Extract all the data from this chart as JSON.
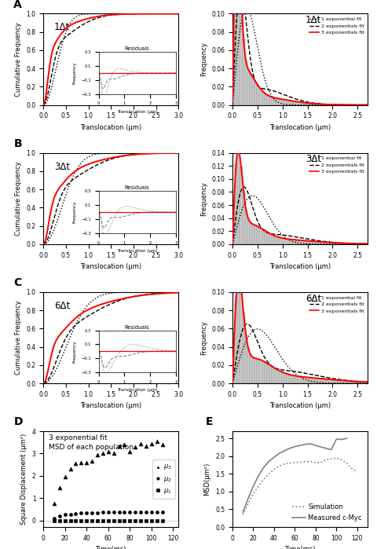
{
  "panels": [
    "A",
    "B",
    "C"
  ],
  "delta_t_labels": [
    "1Δt",
    "3Δt",
    "6Δt"
  ],
  "legend_entries": [
    "1 exponential fit",
    "2 exponentials fit",
    "3 exponentials fit"
  ],
  "bar_color": "#c8c8c8",
  "bar_edge_color": "#999999",
  "panel_D_title1": "3 exponential fit",
  "panel_D_title2": "MSD of each population",
  "panel_D_xlabel": "Time(ms)",
  "panel_D_ylabel": "Square Displacement (μm²)",
  "panel_E_xlabel": "Time(ms)",
  "panel_E_ylabel": "MSD(μm²)",
  "mu3_times": [
    10,
    15,
    20,
    25,
    30,
    35,
    40,
    45,
    50,
    55,
    60,
    65,
    70,
    75,
    80,
    85,
    90,
    95,
    100,
    105,
    110
  ],
  "mu3_values": [
    0.75,
    1.45,
    1.95,
    2.3,
    2.55,
    2.6,
    2.6,
    2.65,
    2.95,
    3.0,
    3.1,
    3.0,
    3.35,
    3.4,
    3.1,
    3.3,
    3.45,
    3.35,
    3.45,
    3.55,
    3.4
  ],
  "mu2_times": [
    10,
    15,
    20,
    25,
    30,
    35,
    40,
    45,
    50,
    55,
    60,
    65,
    70,
    75,
    80,
    85,
    90,
    95,
    100,
    105,
    110
  ],
  "mu2_values": [
    0.1,
    0.18,
    0.25,
    0.28,
    0.3,
    0.32,
    0.33,
    0.34,
    0.35,
    0.36,
    0.37,
    0.37,
    0.37,
    0.38,
    0.38,
    0.38,
    0.38,
    0.37,
    0.38,
    0.38,
    0.37
  ],
  "mu1_times": [
    10,
    15,
    20,
    25,
    30,
    35,
    40,
    45,
    50,
    55,
    60,
    65,
    70,
    75,
    80,
    85,
    90,
    95,
    100,
    105,
    110
  ],
  "mu1_values": [
    0.0,
    0.0,
    0.0,
    0.0,
    0.0,
    0.0,
    0.0,
    0.0,
    0.0,
    0.0,
    0.0,
    0.0,
    0.0,
    0.0,
    0.0,
    0.0,
    0.0,
    0.0,
    0.0,
    0.0,
    0.0
  ],
  "sim_times": [
    10,
    15,
    20,
    25,
    30,
    35,
    40,
    45,
    50,
    55,
    60,
    65,
    70,
    75,
    80,
    85,
    90,
    95,
    100,
    105,
    110,
    115,
    120
  ],
  "sim_values": [
    0.35,
    0.65,
    0.95,
    1.15,
    1.35,
    1.5,
    1.62,
    1.72,
    1.78,
    1.8,
    1.82,
    1.83,
    1.84,
    1.85,
    1.82,
    1.82,
    1.9,
    1.92,
    1.95,
    1.9,
    1.8,
    1.65,
    1.55
  ],
  "meas_times": [
    10,
    15,
    20,
    25,
    30,
    35,
    40,
    45,
    50,
    55,
    60,
    65,
    70,
    75,
    80,
    85,
    90,
    95,
    100,
    105,
    110
  ],
  "meas_values": [
    0.42,
    0.8,
    1.15,
    1.45,
    1.68,
    1.85,
    1.97,
    2.08,
    2.15,
    2.22,
    2.27,
    2.3,
    2.33,
    2.35,
    2.3,
    2.26,
    2.22,
    2.18,
    2.48,
    2.47,
    2.5
  ],
  "pdf_ylim": [
    0.1,
    0.14,
    0.1
  ],
  "pdf_yticks": [
    [
      0.0,
      0.02,
      0.04,
      0.06,
      0.08,
      0.1
    ],
    [
      0.0,
      0.02,
      0.04,
      0.06,
      0.08,
      0.1,
      0.12,
      0.14
    ],
    [
      0.0,
      0.02,
      0.04,
      0.06,
      0.08,
      0.1
    ]
  ]
}
